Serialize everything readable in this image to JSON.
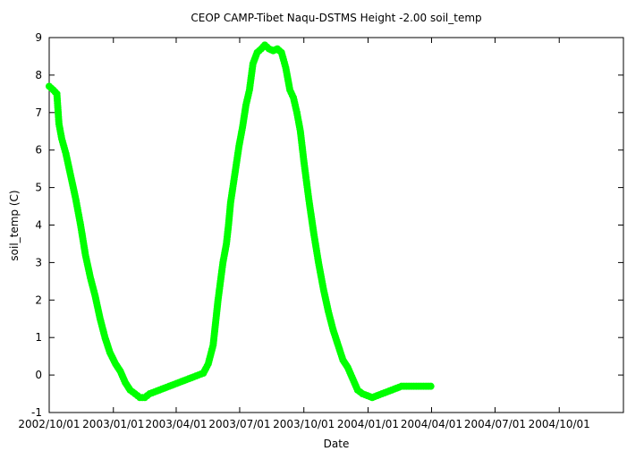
{
  "chart_data": {
    "type": "scatter",
    "title": "CEOP CAMP-Tibet Naqu-DSTMS Height -2.00 soil_temp",
    "xlabel": "Date",
    "ylabel": "soil_temp (C)",
    "xlim": [
      "2002-10-01",
      "2005-01-01"
    ],
    "ylim": [
      -1,
      9
    ],
    "y_ticks": [
      "-1",
      "0",
      "1",
      "2",
      "3",
      "4",
      "5",
      "6",
      "7",
      "8",
      "9"
    ],
    "x_ticks": [
      "2002/10/01",
      "2003/01/01",
      "2003/04/01",
      "2003/07/01",
      "2003/10/01",
      "2004/01/01",
      "2004/04/01",
      "2004/07/01",
      "2004/10/01"
    ],
    "marker_color": "#00ff00",
    "grid": false,
    "series": [
      {
        "x": [
          "2002-10-01",
          "2002-10-07",
          "2002-10-12",
          "2002-10-15",
          "2002-10-19",
          "2002-10-25",
          "2002-11-01",
          "2002-11-08",
          "2002-11-15",
          "2002-11-22",
          "2002-11-29",
          "2002-12-06",
          "2002-12-13",
          "2002-12-20",
          "2002-12-27",
          "2003-01-04",
          "2003-01-11",
          "2003-01-18",
          "2003-01-25",
          "2003-02-01",
          "2003-02-08",
          "2003-02-15",
          "2003-02-22",
          "2003-03-01",
          "2003-03-08",
          "2003-03-15",
          "2003-03-22",
          "2003-03-29",
          "2003-04-05",
          "2003-04-12",
          "2003-04-19",
          "2003-04-26",
          "2003-05-03",
          "2003-05-10",
          "2003-05-17",
          "2003-05-24",
          "2003-05-31",
          "2003-06-07",
          "2003-06-12",
          "2003-06-15",
          "2003-06-18",
          "2003-06-22",
          "2003-06-26",
          "2003-06-30",
          "2003-07-05",
          "2003-07-10",
          "2003-07-15",
          "2003-07-20",
          "2003-07-26",
          "2003-08-01",
          "2003-08-06",
          "2003-08-12",
          "2003-08-18",
          "2003-08-24",
          "2003-08-30",
          "2003-09-05",
          "2003-09-11",
          "2003-09-16",
          "2003-09-21",
          "2003-09-26",
          "2003-10-01",
          "2003-10-08",
          "2003-10-15",
          "2003-10-22",
          "2003-10-29",
          "2003-11-05",
          "2003-11-12",
          "2003-11-19",
          "2003-11-26",
          "2003-12-03",
          "2003-12-10",
          "2003-12-17",
          "2003-12-24",
          "2003-12-31",
          "2004-01-07",
          "2004-01-14",
          "2004-01-21",
          "2004-01-28",
          "2004-02-04",
          "2004-02-11",
          "2004-02-18",
          "2004-02-25",
          "2004-03-03",
          "2004-03-10",
          "2004-03-17",
          "2004-03-24",
          "2004-03-31"
        ],
        "y": [
          7.7,
          7.6,
          7.5,
          6.7,
          6.3,
          5.9,
          5.3,
          4.7,
          4.0,
          3.2,
          2.6,
          2.1,
          1.5,
          1.0,
          0.6,
          0.3,
          0.1,
          -0.2,
          -0.4,
          -0.5,
          -0.6,
          -0.6,
          -0.5,
          -0.45,
          -0.4,
          -0.35,
          -0.3,
          -0.25,
          -0.2,
          -0.15,
          -0.1,
          -0.05,
          0.0,
          0.05,
          0.3,
          0.8,
          2.0,
          3.0,
          3.5,
          4.0,
          4.6,
          5.1,
          5.6,
          6.1,
          6.6,
          7.2,
          7.6,
          8.3,
          8.6,
          8.7,
          8.8,
          8.7,
          8.65,
          8.7,
          8.6,
          8.2,
          7.6,
          7.4,
          7.0,
          6.5,
          5.7,
          4.7,
          3.8,
          3.0,
          2.3,
          1.7,
          1.2,
          0.8,
          0.4,
          0.2,
          -0.1,
          -0.4,
          -0.5,
          -0.55,
          -0.6,
          -0.55,
          -0.5,
          -0.45,
          -0.4,
          -0.35,
          -0.3,
          -0.3,
          -0.3,
          -0.3,
          -0.3,
          -0.3,
          -0.3
        ]
      }
    ]
  }
}
